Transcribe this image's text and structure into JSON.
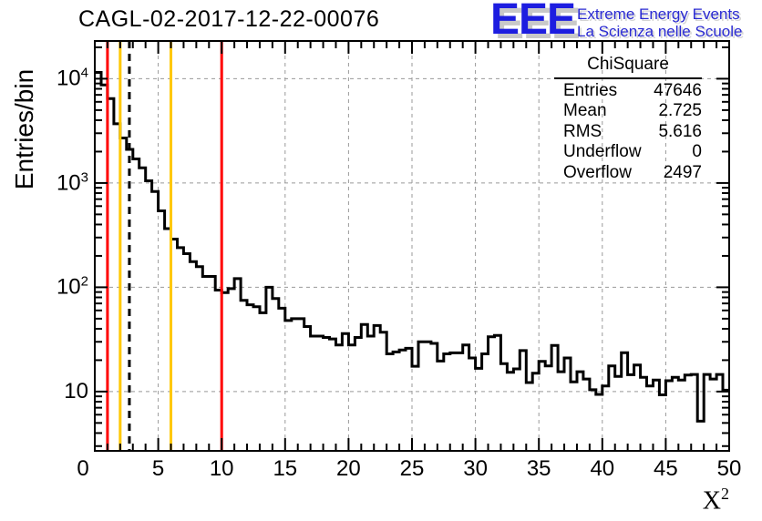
{
  "header": {
    "title": "CAGL-02-2017-12-22-00076",
    "logo": {
      "letters": "EEE",
      "line1": "Extreme Energy Events",
      "line2": "La Scienza nelle Scuole"
    }
  },
  "stats": {
    "title": "ChiSquare",
    "rows": [
      {
        "label": "Entries",
        "value": "47646"
      },
      {
        "label": "Mean",
        "value": "2.725"
      },
      {
        "label": "RMS",
        "value": "5.616"
      },
      {
        "label": "Underflow",
        "value": "0"
      },
      {
        "label": "Overflow",
        "value": "2497"
      }
    ]
  },
  "chart_data": {
    "type": "bar",
    "subtype": "step-histogram",
    "title": "CAGL-02-2017-12-22-00076",
    "xlabel_base": "X",
    "xlabel_exp": "2",
    "ylabel": "Entries/bin",
    "log_y": true,
    "grid": true,
    "xlim": [
      0,
      50
    ],
    "ylim": [
      2.7,
      23000
    ],
    "bin_width": 0.5,
    "bin_start": 0,
    "counts": [
      11500,
      8700,
      6450,
      3700,
      2700,
      2100,
      1700,
      1400,
      1050,
      830,
      540,
      365,
      290,
      240,
      210,
      176,
      158,
      127,
      127,
      94,
      89,
      97,
      121,
      75,
      68,
      65,
      57,
      100,
      78,
      63,
      48,
      50,
      50,
      42,
      34,
      34,
      33,
      32,
      28,
      36,
      28,
      33,
      44,
      34,
      43,
      37,
      23,
      24,
      25,
      26,
      17.5,
      30,
      30,
      29,
      19.6,
      23,
      23.5,
      23.5,
      28,
      21,
      16.7,
      23,
      33.5,
      34.5,
      18.5,
      15.3,
      16.5,
      24.7,
      12.2,
      15,
      19.5,
      17.6,
      27.7,
      15.5,
      21,
      12.4,
      15.5,
      13.2,
      10.4,
      9.4,
      11.3,
      17.6,
      14,
      23.6,
      14.5,
      18,
      13.7,
      11.3,
      12.9,
      9.3,
      12.7,
      13.7,
      12.9,
      14.4,
      14.6,
      5.2,
      14.6,
      13.2,
      14.6,
      10.3
    ],
    "x_ticks_major": [
      0,
      5,
      10,
      15,
      20,
      25,
      30,
      35,
      40,
      45,
      50
    ],
    "x_tick_labels": [
      "0",
      "5",
      "10",
      "15",
      "20",
      "25",
      "30",
      "35",
      "40",
      "45",
      "50"
    ],
    "y_ticks": [
      {
        "value": 10,
        "base": "10",
        "exp": ""
      },
      {
        "value": 100,
        "base": "10",
        "exp": "2"
      },
      {
        "value": 1000,
        "base": "10",
        "exp": "3"
      },
      {
        "value": 10000,
        "base": "10",
        "exp": "4"
      }
    ],
    "vlines": [
      {
        "x": 1,
        "color": "#ff0000",
        "style": "solid"
      },
      {
        "x": 2,
        "color": "#ffc800",
        "style": "solid"
      },
      {
        "x": 2.725,
        "color": "#000000",
        "style": "dashed"
      },
      {
        "x": 6,
        "color": "#ffc800",
        "style": "solid"
      },
      {
        "x": 10,
        "color": "#ff0000",
        "style": "solid"
      }
    ],
    "colors": {
      "histogram": "#000000",
      "grid": "#999999",
      "frame": "#000000",
      "marker_red": "#ff0000",
      "marker_yellow": "#ffc800"
    }
  }
}
